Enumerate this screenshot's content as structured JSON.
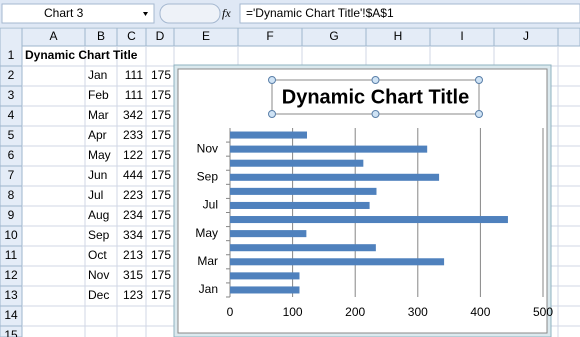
{
  "name_box": "Chart 3",
  "function_label": "fx",
  "formula": "='Dynamic Chart Title'!$A$1",
  "columns": [
    "A",
    "B",
    "C",
    "D",
    "E",
    "F",
    "G",
    "H",
    "I",
    "J"
  ],
  "row_numbers": [
    1,
    2,
    3,
    4,
    5,
    6,
    7,
    8,
    9,
    10,
    11,
    12,
    13,
    14,
    15
  ],
  "sheet": {
    "a1": "Dynamic Chart Title",
    "rows": [
      {
        "b": "Jan",
        "c": 111,
        "d": 175
      },
      {
        "b": "Feb",
        "c": 111,
        "d": 175
      },
      {
        "b": "Mar",
        "c": 342,
        "d": 175
      },
      {
        "b": "Apr",
        "c": 233,
        "d": 175
      },
      {
        "b": "May",
        "c": 122,
        "d": 175
      },
      {
        "b": "Jun",
        "c": 444,
        "d": 175
      },
      {
        "b": "Jul",
        "c": 223,
        "d": 175
      },
      {
        "b": "Aug",
        "c": 234,
        "d": 175
      },
      {
        "b": "Sep",
        "c": 334,
        "d": 175
      },
      {
        "b": "Oct",
        "c": 213,
        "d": 175
      },
      {
        "b": "Nov",
        "c": 315,
        "d": 175
      },
      {
        "b": "Dec",
        "c": 123,
        "d": 175
      }
    ]
  },
  "chart_data": {
    "type": "bar",
    "orientation": "horizontal",
    "title": "Dynamic Chart Title",
    "categories": [
      "Jan",
      null,
      "Mar",
      null,
      "May",
      null,
      "Jul",
      null,
      "Sep",
      null,
      "Nov",
      null
    ],
    "values": [
      111,
      111,
      342,
      233,
      122,
      444,
      223,
      234,
      334,
      213,
      315,
      123
    ],
    "color": "#4f81bd",
    "xlim": [
      0,
      500
    ],
    "xticks": [
      0,
      100,
      200,
      300,
      400,
      500
    ],
    "grid": true
  }
}
